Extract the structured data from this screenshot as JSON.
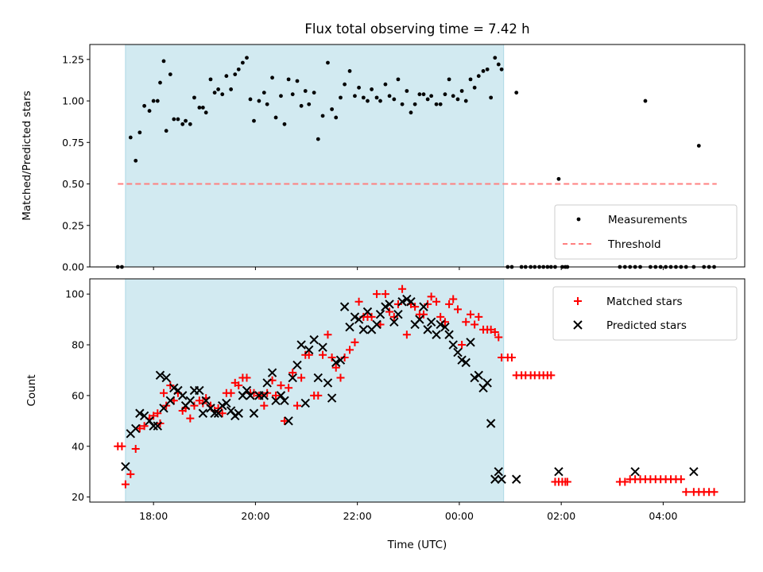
{
  "chart_data": [
    {
      "type": "scatter",
      "title": "Flux total observing time = 7.42 h",
      "xlabel": "",
      "ylabel": "Matched/Predicted stars",
      "xlim_hours": [
        16.75,
        29.6
      ],
      "ylim": [
        0,
        1.34
      ],
      "yticks": [
        "0.00",
        "0.25",
        "0.50",
        "0.75",
        "1.00",
        "1.25"
      ],
      "shaded_interval_hours": [
        17.45,
        24.87
      ],
      "shade_color": "#add8e6",
      "grid": false,
      "legend_position": "lower right",
      "threshold": {
        "name": "Threshold",
        "y": 0.5,
        "x_range": [
          17.3,
          29.05
        ],
        "color": "#ff8080"
      },
      "series": [
        {
          "name": "Measurements",
          "color": "#000000",
          "marker": "dot",
          "x": [
            17.3,
            17.38,
            17.55,
            17.65,
            17.73,
            17.82,
            17.92,
            18.0,
            18.08,
            18.13,
            18.2,
            18.25,
            18.33,
            18.4,
            18.48,
            18.57,
            18.63,
            18.72,
            18.8,
            18.9,
            18.97,
            19.03,
            19.12,
            19.2,
            19.27,
            19.35,
            19.43,
            19.52,
            19.6,
            19.67,
            19.75,
            19.83,
            19.9,
            19.97,
            20.07,
            20.17,
            20.23,
            20.33,
            20.4,
            20.5,
            20.57,
            20.65,
            20.73,
            20.82,
            20.9,
            20.98,
            21.05,
            21.15,
            21.23,
            21.32,
            21.42,
            21.5,
            21.58,
            21.67,
            21.75,
            21.85,
            21.95,
            22.03,
            22.12,
            22.2,
            22.28,
            22.38,
            22.45,
            22.55,
            22.63,
            22.72,
            22.8,
            22.88,
            22.97,
            23.05,
            23.13,
            23.22,
            23.3,
            23.38,
            23.45,
            23.55,
            23.63,
            23.72,
            23.8,
            23.88,
            23.97,
            24.05,
            24.13,
            24.22,
            24.3,
            24.38,
            24.47,
            24.55,
            24.62,
            24.7,
            24.77,
            24.83,
            24.95,
            25.03,
            25.12,
            25.22,
            25.3,
            25.4,
            25.48,
            25.57,
            25.65,
            25.73,
            25.8,
            25.88,
            25.95,
            26.02,
            26.08,
            26.12,
            27.15,
            27.25,
            27.35,
            27.45,
            27.55,
            27.65,
            27.75,
            27.85,
            27.95,
            28.05,
            28.15,
            28.25,
            28.35,
            28.45,
            28.6,
            28.7,
            28.8,
            28.9,
            29.0
          ],
          "y": [
            0.0,
            0.0,
            0.78,
            0.64,
            0.81,
            0.97,
            0.94,
            1.0,
            1.0,
            1.11,
            1.24,
            0.82,
            1.16,
            0.89,
            0.89,
            0.86,
            0.88,
            0.86,
            1.02,
            0.96,
            0.96,
            0.93,
            1.13,
            1.05,
            1.07,
            1.04,
            1.15,
            1.07,
            1.16,
            1.19,
            1.23,
            1.26,
            1.01,
            0.88,
            1.0,
            1.05,
            0.98,
            1.14,
            0.9,
            1.03,
            0.86,
            1.13,
            1.04,
            1.12,
            0.97,
            1.06,
            0.98,
            1.05,
            0.77,
            0.91,
            1.23,
            0.95,
            0.9,
            1.02,
            1.1,
            1.18,
            1.03,
            1.08,
            1.02,
            1.0,
            1.07,
            1.02,
            1.0,
            1.1,
            1.03,
            1.01,
            1.13,
            0.98,
            1.06,
            0.93,
            0.98,
            1.04,
            1.04,
            1.01,
            1.03,
            0.98,
            0.98,
            1.04,
            1.13,
            1.03,
            1.01,
            1.06,
            1.0,
            1.13,
            1.08,
            1.15,
            1.18,
            1.19,
            1.02,
            1.26,
            1.22,
            1.19,
            0.0,
            0.0,
            1.05,
            0.0,
            0.0,
            0.0,
            0.0,
            0.0,
            0.0,
            0.0,
            0.0,
            0.0,
            0.53,
            0.0,
            0.0,
            0.0,
            0.0,
            0.0,
            0.0,
            0.0,
            0.0,
            1.0,
            0.0,
            0.0,
            0.0,
            0.0,
            0.0,
            0.0,
            0.0,
            0.0,
            0.0,
            0.73,
            0.0,
            0.0,
            0.0
          ]
        }
      ]
    },
    {
      "type": "scatter",
      "title": "",
      "xlabel": "Time (UTC)",
      "ylabel": "Count",
      "xlim_hours": [
        16.75,
        29.6
      ],
      "ylim": [
        18,
        106
      ],
      "yticks": [
        "20",
        "40",
        "60",
        "80",
        "100"
      ],
      "xticks": [
        {
          "hour": 18,
          "label": "18:00"
        },
        {
          "hour": 20,
          "label": "20:00"
        },
        {
          "hour": 22,
          "label": "22:00"
        },
        {
          "hour": 24,
          "label": "00:00"
        },
        {
          "hour": 26,
          "label": "02:00"
        },
        {
          "hour": 28,
          "label": "04:00"
        }
      ],
      "shaded_interval_hours": [
        17.45,
        24.87
      ],
      "shade_color": "#add8e6",
      "grid": false,
      "legend_position": "upper right",
      "series": [
        {
          "name": "Matched stars",
          "color": "#ff0000",
          "marker": "plus",
          "x": [
            17.3,
            17.38,
            17.45,
            17.55,
            17.65,
            17.73,
            17.82,
            17.92,
            18.0,
            18.08,
            18.13,
            18.2,
            18.25,
            18.33,
            18.4,
            18.48,
            18.57,
            18.63,
            18.72,
            18.8,
            18.9,
            18.97,
            19.03,
            19.12,
            19.2,
            19.27,
            19.35,
            19.43,
            19.52,
            19.6,
            19.67,
            19.75,
            19.83,
            19.9,
            19.97,
            20.07,
            20.17,
            20.23,
            20.33,
            20.4,
            20.5,
            20.57,
            20.65,
            20.73,
            20.82,
            20.9,
            20.98,
            21.05,
            21.15,
            21.23,
            21.32,
            21.42,
            21.5,
            21.58,
            21.67,
            21.75,
            21.85,
            21.95,
            22.03,
            22.12,
            22.2,
            22.28,
            22.38,
            22.45,
            22.55,
            22.63,
            22.72,
            22.8,
            22.88,
            22.97,
            23.05,
            23.13,
            23.22,
            23.3,
            23.38,
            23.45,
            23.55,
            23.63,
            23.72,
            23.8,
            23.88,
            23.97,
            24.05,
            24.13,
            24.22,
            24.3,
            24.38,
            24.47,
            24.55,
            24.62,
            24.7,
            24.77,
            24.83,
            24.95,
            25.03,
            25.12,
            25.22,
            25.3,
            25.4,
            25.48,
            25.57,
            25.65,
            25.73,
            25.8,
            25.88,
            25.95,
            26.02,
            26.08,
            26.12,
            27.15,
            27.25,
            27.35,
            27.45,
            27.55,
            27.65,
            27.75,
            27.85,
            27.95,
            28.05,
            28.15,
            28.25,
            28.35,
            28.45,
            28.6,
            28.7,
            28.8,
            28.9,
            29.0
          ],
          "y": [
            40,
            40,
            25,
            29,
            39,
            47,
            48,
            51,
            52,
            53,
            49,
            61,
            56,
            64,
            58,
            61,
            54,
            55,
            51,
            56,
            58,
            57,
            59,
            56,
            54,
            55,
            53,
            61,
            61,
            65,
            64,
            67,
            67,
            61,
            61,
            60,
            56,
            61,
            66,
            60,
            64,
            50,
            63,
            69,
            56,
            67,
            76,
            76,
            60,
            60,
            76,
            84,
            75,
            71,
            67,
            75,
            78,
            81,
            97,
            91,
            91,
            91,
            100,
            88,
            100,
            93,
            91,
            96,
            102,
            84,
            96,
            95,
            92,
            92,
            96,
            99,
            97,
            91,
            89,
            96,
            98,
            94,
            80,
            89,
            92,
            88,
            91,
            86,
            86,
            86,
            85,
            83,
            75,
            75,
            75,
            68,
            68,
            68,
            68,
            68,
            68,
            68,
            68,
            68,
            26,
            26,
            26,
            26,
            26,
            26,
            26,
            27,
            27,
            27,
            27,
            27,
            27,
            27,
            27,
            27,
            27,
            27,
            22,
            22,
            22,
            22,
            22,
            22
          ]
        },
        {
          "name": "Predicted stars",
          "color": "#000000",
          "marker": "x",
          "x": [
            17.45,
            17.55,
            17.65,
            17.73,
            17.82,
            17.92,
            18.0,
            18.08,
            18.13,
            18.2,
            18.25,
            18.33,
            18.4,
            18.48,
            18.57,
            18.63,
            18.72,
            18.8,
            18.9,
            18.97,
            19.03,
            19.12,
            19.2,
            19.27,
            19.35,
            19.43,
            19.52,
            19.6,
            19.67,
            19.75,
            19.83,
            19.9,
            19.97,
            20.07,
            20.17,
            20.23,
            20.33,
            20.4,
            20.5,
            20.57,
            20.65,
            20.73,
            20.82,
            20.9,
            20.98,
            21.05,
            21.15,
            21.23,
            21.32,
            21.42,
            21.5,
            21.58,
            21.67,
            21.75,
            21.85,
            21.95,
            22.03,
            22.12,
            22.2,
            22.28,
            22.38,
            22.45,
            22.55,
            22.63,
            22.72,
            22.8,
            22.88,
            22.97,
            23.05,
            23.13,
            23.22,
            23.3,
            23.38,
            23.45,
            23.55,
            23.63,
            23.72,
            23.8,
            23.88,
            23.97,
            24.05,
            24.13,
            24.22,
            24.3,
            24.38,
            24.47,
            24.55,
            24.62,
            24.7,
            24.77,
            24.83,
            25.12,
            25.95,
            27.45,
            28.6
          ],
          "y": [
            32,
            45,
            47,
            53,
            52,
            50,
            48,
            48,
            68,
            55,
            67,
            58,
            63,
            62,
            60,
            56,
            58,
            62,
            62,
            53,
            58,
            55,
            53,
            53,
            56,
            57,
            54,
            52,
            53,
            60,
            62,
            60,
            53,
            60,
            60,
            65,
            69,
            58,
            60,
            58,
            50,
            67,
            72,
            80,
            57,
            78,
            82,
            67,
            79,
            65,
            59,
            73,
            74,
            95,
            87,
            91,
            90,
            86,
            93,
            86,
            88,
            92,
            95,
            96,
            89,
            92,
            97,
            98,
            97,
            88,
            90,
            95,
            86,
            89,
            84,
            88,
            87,
            84,
            80,
            77,
            74,
            73,
            81,
            67,
            68,
            63,
            65,
            49,
            27,
            30,
            27,
            27,
            30,
            30,
            30
          ]
        }
      ]
    }
  ]
}
